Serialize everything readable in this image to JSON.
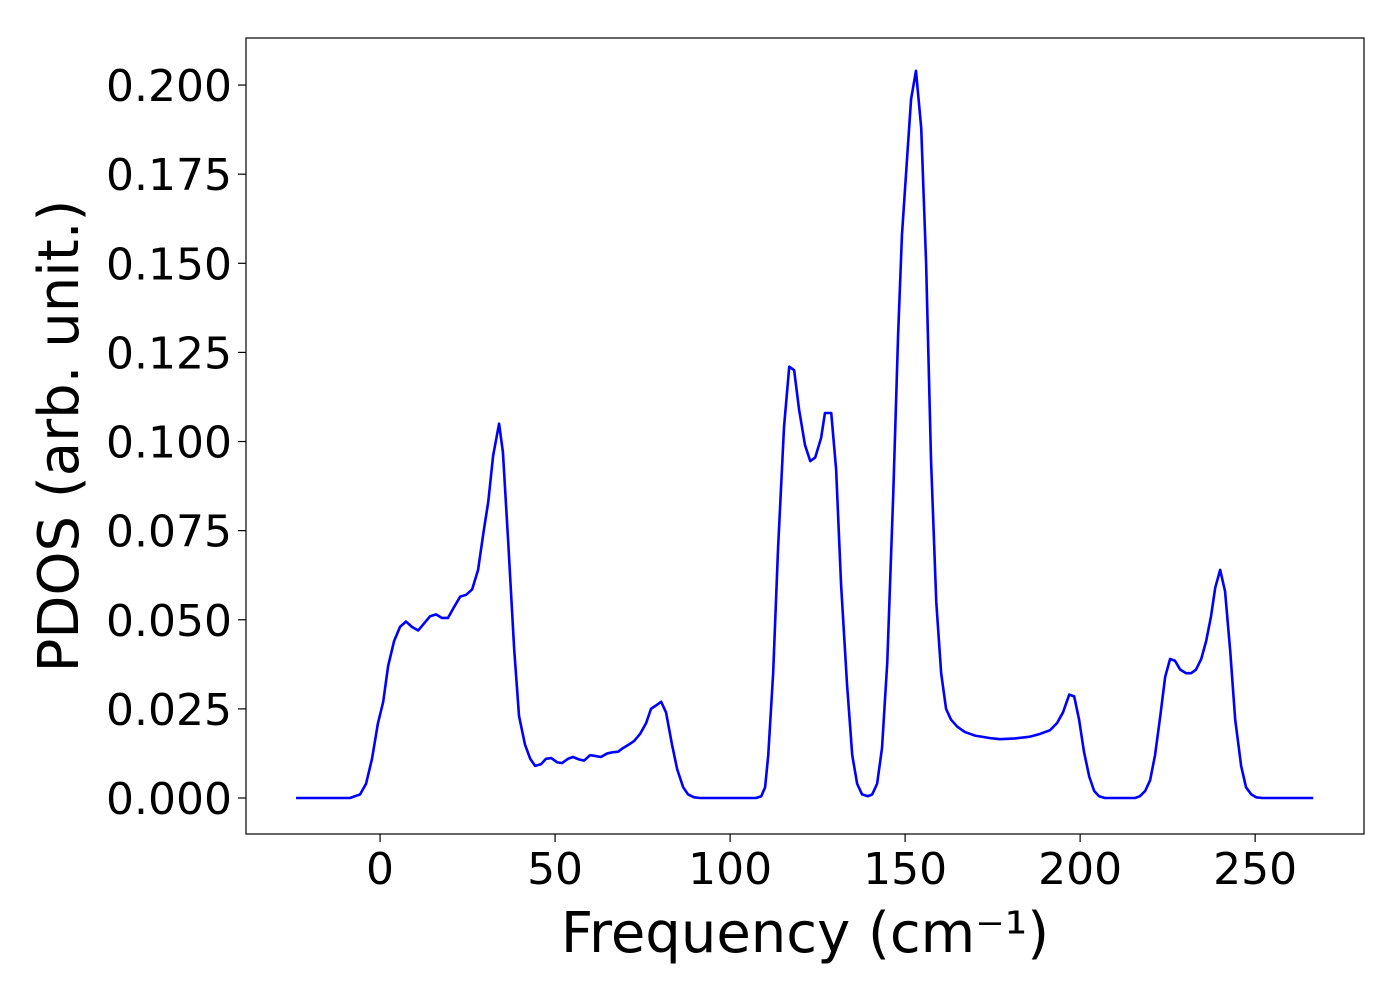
{
  "chart_data": {
    "type": "line",
    "x_label": "Frequency (cm⁻¹)",
    "y_label": "PDOS (arb. unit.)",
    "x": [
      -24,
      -8.6,
      -5.7,
      -4,
      -2.3,
      -0.6,
      0.9,
      2.3,
      4,
      5.7,
      7.4,
      9.1,
      10.9,
      12.6,
      14.3,
      16,
      17.7,
      19.4,
      21.1,
      22.9,
      24.6,
      26.3,
      28,
      29.7,
      30.9,
      32.3,
      34,
      35.1,
      36.6,
      38.3,
      39.7,
      41.4,
      42.9,
      44.3,
      46,
      47.4,
      48.9,
      50.6,
      52,
      53.7,
      55.1,
      56.9,
      58.3,
      60,
      61.4,
      63.1,
      64.9,
      66.3,
      68,
      69.4,
      71.1,
      72.6,
      74.3,
      76,
      77.4,
      78.9,
      80.3,
      81.7,
      83.4,
      84.9,
      86.6,
      88,
      89.7,
      91.4,
      107.4,
      108.9,
      110,
      110.9,
      112.3,
      113.7,
      115.4,
      116.9,
      118.3,
      119.7,
      121.4,
      122.9,
      124.3,
      126,
      127.1,
      128.9,
      130.3,
      131.7,
      133.4,
      134.9,
      136.3,
      137.7,
      139.4,
      140.6,
      142,
      143.4,
      144.9,
      146.6,
      148,
      149.1,
      150.6,
      151.7,
      153.1,
      154.6,
      156,
      157.4,
      158.9,
      160.3,
      161.7,
      163.1,
      164.9,
      167.1,
      170,
      174.3,
      177.1,
      181.4,
      185.7,
      188.6,
      191.4,
      193.4,
      195.1,
      196.9,
      198.3,
      199.7,
      201.1,
      202.6,
      204,
      205.4,
      207.1,
      215.7,
      217.1,
      218.6,
      220,
      221.4,
      222.9,
      224.3,
      225.7,
      227.1,
      228.6,
      230.3,
      231.7,
      233.1,
      234.6,
      236,
      237.4,
      238.6,
      240,
      241.4,
      242.9,
      244.3,
      246,
      247.4,
      248.9,
      250.3,
      252,
      266.6
    ],
    "series": [
      {
        "color": "#0000ff",
        "values": [
          0,
          0,
          0.001,
          0.004,
          0.011,
          0.021,
          0.027,
          0.037,
          0.044,
          0.048,
          0.0495,
          0.048,
          0.047,
          0.049,
          0.051,
          0.0515,
          0.0505,
          0.0505,
          0.0535,
          0.0565,
          0.057,
          0.0585,
          0.064,
          0.0755,
          0.083,
          0.096,
          0.105,
          0.097,
          0.072,
          0.042,
          0.023,
          0.015,
          0.011,
          0.009,
          0.0095,
          0.011,
          0.0112,
          0.01,
          0.0098,
          0.011,
          0.0115,
          0.0108,
          0.0105,
          0.012,
          0.0118,
          0.0115,
          0.0125,
          0.0128,
          0.013,
          0.014,
          0.015,
          0.016,
          0.018,
          0.021,
          0.025,
          0.026,
          0.027,
          0.024,
          0.015,
          0.008,
          0.003,
          0.001,
          0.0002,
          0,
          0,
          0.0005,
          0.003,
          0.012,
          0.035,
          0.07,
          0.104,
          0.121,
          0.12,
          0.109,
          0.099,
          0.0945,
          0.0955,
          0.101,
          0.108,
          0.108,
          0.092,
          0.06,
          0.032,
          0.012,
          0.004,
          0.001,
          0.0005,
          0.001,
          0.004,
          0.014,
          0.038,
          0.085,
          0.13,
          0.158,
          0.18,
          0.196,
          0.204,
          0.188,
          0.15,
          0.095,
          0.055,
          0.035,
          0.025,
          0.022,
          0.02,
          0.0185,
          0.0175,
          0.0168,
          0.0165,
          0.0167,
          0.0172,
          0.018,
          0.019,
          0.021,
          0.024,
          0.029,
          0.0285,
          0.022,
          0.013,
          0.006,
          0.002,
          0.0005,
          0,
          0,
          0.0005,
          0.002,
          0.005,
          0.012,
          0.023,
          0.034,
          0.039,
          0.0385,
          0.036,
          0.035,
          0.035,
          0.036,
          0.039,
          0.044,
          0.051,
          0.059,
          0.064,
          0.058,
          0.041,
          0.022,
          0.009,
          0.003,
          0.001,
          0.0002,
          0,
          0
        ]
      }
    ],
    "xlim": [
      -38.3,
      281.1
    ],
    "ylim": [
      -0.0101,
      0.2132
    ],
    "xticks": [
      0,
      50,
      100,
      150,
      200,
      250
    ],
    "yticks": [
      {
        "value": 0,
        "label": "0.000"
      },
      {
        "value": 0.025,
        "label": "0.025"
      },
      {
        "value": 0.05,
        "label": "0.050"
      },
      {
        "value": 0.075,
        "label": "0.075"
      },
      {
        "value": 0.1,
        "label": "0.100"
      },
      {
        "value": 0.125,
        "label": "0.125"
      },
      {
        "value": 0.15,
        "label": "0.150"
      },
      {
        "value": 0.175,
        "label": "0.175"
      },
      {
        "value": 0.2,
        "label": "0.200"
      }
    ],
    "grid": false
  }
}
